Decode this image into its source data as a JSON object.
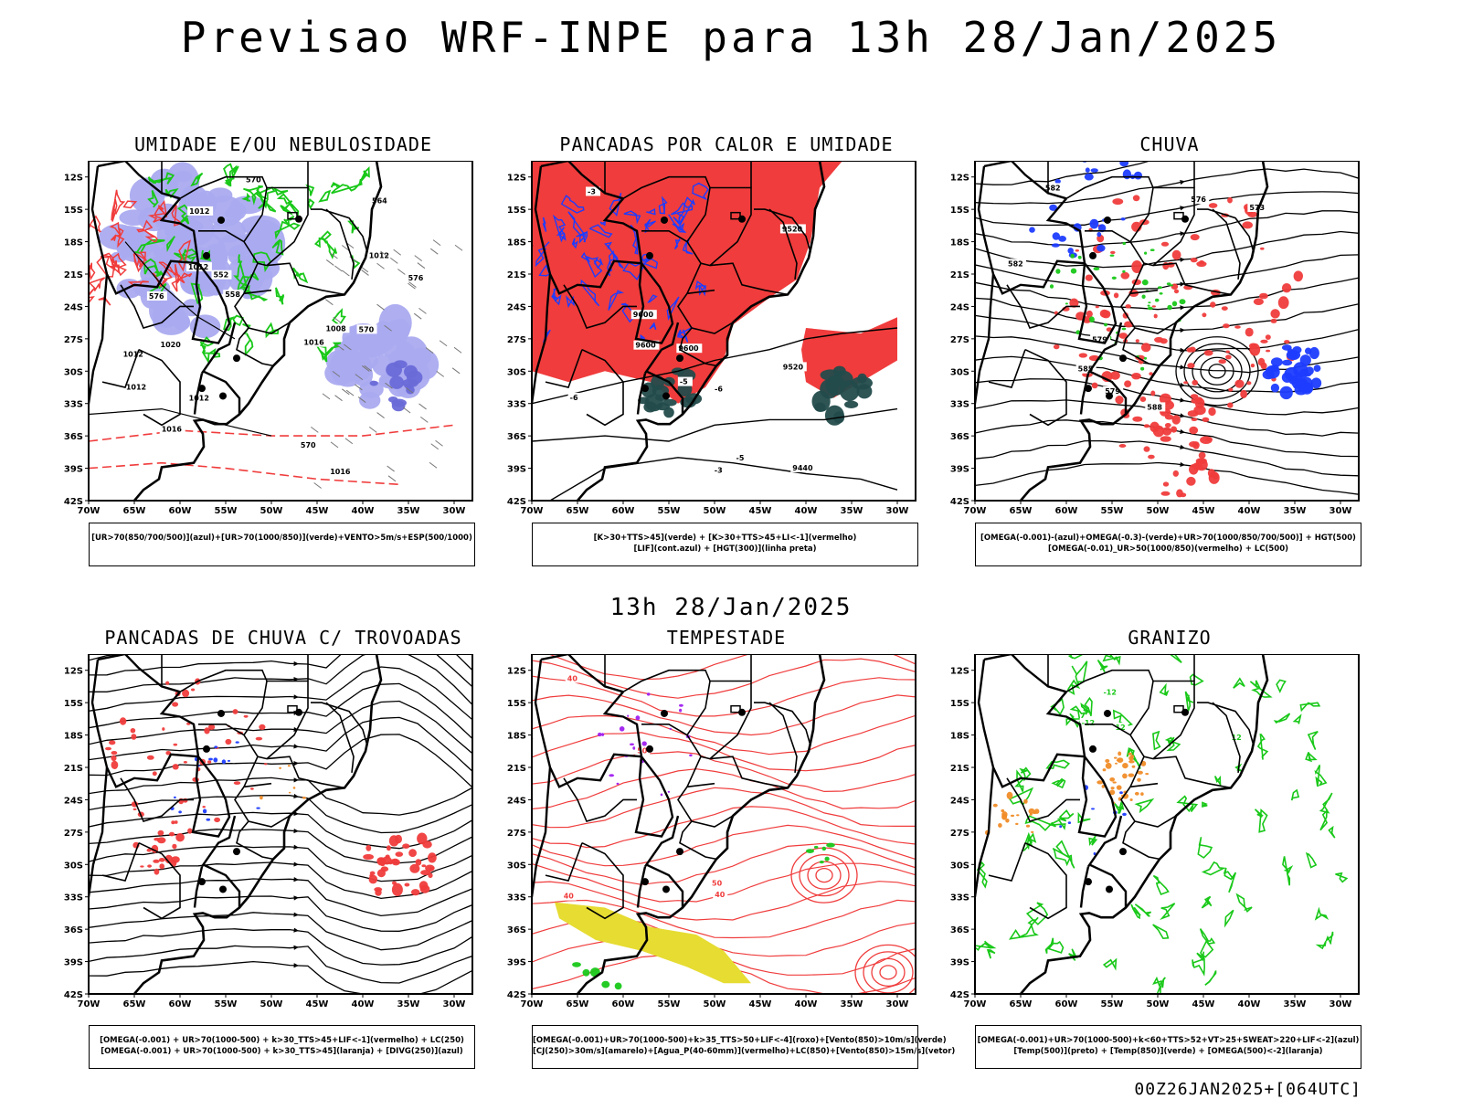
{
  "title": "Previsao WRF-INPE  para 13h 28/Jan/2025",
  "subtitle": "13h 28/Jan/2025",
  "footer": "00Z26JAN2025+[064UTC]",
  "axes": {
    "lat_labels": [
      "12S",
      "15S",
      "18S",
      "21S",
      "24S",
      "27S",
      "30S",
      "33S",
      "36S",
      "39S",
      "42S"
    ],
    "lon_labels": [
      "70W",
      "65W",
      "60W",
      "55W",
      "50W",
      "45W",
      "40W",
      "35W",
      "30W"
    ]
  },
  "colors": {
    "red": "#f03c3c",
    "green": "#19c819",
    "blue": "#1e3cff",
    "lavender": "#aaaaf0",
    "darkteal": "#234b4b",
    "yellow": "#e6dc32",
    "orange": "#f08c28",
    "purple": "#a020f0"
  },
  "panels": [
    {
      "id": "umidade",
      "title": "UMIDADE E/OU NEBULOSIDADE",
      "legend": [
        "[UR>70(850/700/500)](azul)+[UR>70(1000/850)](verde)+VENTO>5m/s+ESP(500/1000)"
      ],
      "labels": [
        "1012",
        "1012",
        "1012",
        "1012",
        "1008",
        "1012",
        "1012",
        "1016",
        "1020",
        "1016",
        "1016",
        "576",
        "576",
        "570",
        "570",
        "570",
        "564",
        "558",
        "552"
      ]
    },
    {
      "id": "pancadas",
      "title": "PANCADAS POR CALOR E UMIDADE",
      "legend": [
        "[K>30+TTS>45](verde) + [K>30+TTS>45+LI<-1](vermelho)",
        "[LIF](cont.azul) + [HGT(300)](linha preta)"
      ],
      "labels": [
        "9600",
        "9600",
        "9600",
        "9520",
        "9440",
        "9520",
        "-6",
        "-6",
        "-5",
        "-5",
        "-3",
        "-3"
      ]
    },
    {
      "id": "chuva",
      "title": "CHUVA",
      "legend": [
        "[OMEGA(-0.001)-(azul)+OMEGA(-0.3)-(verde)+UR>70(1000/850/700/500)] + HGT(500)",
        "[OMEGA(-0.01)_UR>50(1000/850)(vermelho) + LC(500)"
      ],
      "labels": [
        "585",
        "582",
        "582",
        "579",
        "579",
        "576",
        "573",
        "588"
      ]
    },
    {
      "id": "trovoadas",
      "title": "PANCADAS DE CHUVA C/ TROVOADAS",
      "legend": [
        "[OMEGA(-0.001) + UR>70(1000-500) + k>30_TTS>45+LIF<-1](vermelho) + LC(250)",
        "[OMEGA(-0.001) + UR>70(1000-500) + k>30_TTS>45](laranja) + [DIVG(250)](azul)"
      ],
      "labels": []
    },
    {
      "id": "tempestade",
      "title": "TEMPESTADE",
      "legend": [
        "[OMEGA(-0.001)+UR>70(1000-500)+k>35_TTS>50+LIF<-4](roxo)+[Vento(850)>10m/s](verde)",
        "[CJ(250)>30m/s](amarelo)+[Agua_P(40-60mm)](vermelho)+LC(850)+[Vento(850)>15m/s](vetor)"
      ],
      "labels": [
        "50",
        "50",
        "40",
        "40",
        "40"
      ]
    },
    {
      "id": "granizo",
      "title": "GRANIZO",
      "legend": [
        "[OMEGA(-0.001)+UR>70(1000-500)+k<60+TTS>52+VT>25+SWEAT>220+LIF<-2](azul)",
        "[Temp(500)](preto) + [Temp(850)](verde) + [OMEGA(500)<-2](laranja)"
      ],
      "labels": [
        "-12",
        "-12",
        "12",
        "12"
      ]
    }
  ]
}
